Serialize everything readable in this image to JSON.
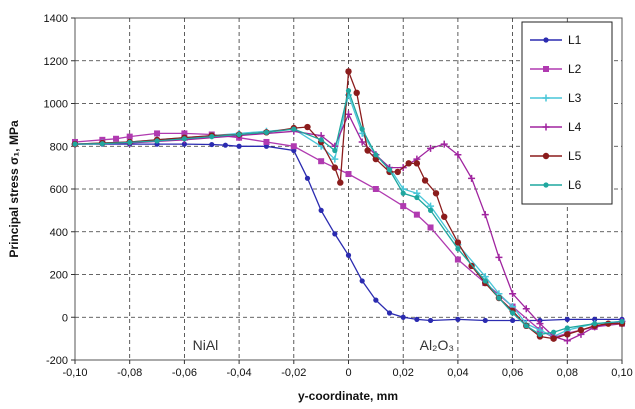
{
  "chart_data": {
    "type": "line",
    "title": "",
    "xlabel": "y-coordinate, mm",
    "ylabel": "Principal stress σ₁, MPa",
    "xlim": [
      -0.1,
      0.1
    ],
    "ylim": [
      -200,
      1400
    ],
    "grid": true,
    "legend_position": "top-right",
    "x_ticks": [
      "-0,10",
      "-0,08",
      "-0,06",
      "-0,04",
      "-0,02",
      "0",
      "0,02",
      "0,04",
      "0,06",
      "0,08",
      "0,10"
    ],
    "y_ticks": [
      "-200",
      "0",
      "200",
      "400",
      "600",
      "800",
      "1000",
      "1200",
      "1400"
    ],
    "annotations": [
      {
        "text": "NiAl",
        "x": -0.057,
        "y": -130
      },
      {
        "text": "Al₂O₃",
        "x": 0.026,
        "y": -130
      }
    ],
    "series": [
      {
        "name": "L1",
        "color": "#2b2bb0",
        "points": [
          [
            -0.1,
            810
          ],
          [
            -0.09,
            810
          ],
          [
            -0.08,
            810
          ],
          [
            -0.07,
            810
          ],
          [
            -0.06,
            810
          ],
          [
            -0.05,
            808
          ],
          [
            -0.045,
            805
          ],
          [
            -0.04,
            800
          ],
          [
            -0.03,
            800
          ],
          [
            -0.02,
            780
          ],
          [
            -0.015,
            650
          ],
          [
            -0.01,
            500
          ],
          [
            -0.005,
            390
          ],
          [
            0,
            290
          ],
          [
            0.005,
            170
          ],
          [
            0.01,
            80
          ],
          [
            0.015,
            20
          ],
          [
            0.02,
            0
          ],
          [
            0.025,
            -10
          ],
          [
            0.03,
            -15
          ],
          [
            0.04,
            -10
          ],
          [
            0.05,
            -15
          ],
          [
            0.06,
            -15
          ],
          [
            0.07,
            -15
          ],
          [
            0.08,
            -10
          ],
          [
            0.09,
            -10
          ],
          [
            0.1,
            -10
          ]
        ]
      },
      {
        "name": "L2",
        "color": "#b03ab0",
        "points": [
          [
            -0.1,
            820
          ],
          [
            -0.09,
            830
          ],
          [
            -0.085,
            835
          ],
          [
            -0.08,
            845
          ],
          [
            -0.07,
            860
          ],
          [
            -0.06,
            860
          ],
          [
            -0.05,
            855
          ],
          [
            -0.04,
            840
          ],
          [
            -0.03,
            820
          ],
          [
            -0.02,
            800
          ],
          [
            -0.01,
            730
          ],
          [
            0,
            670
          ],
          [
            0.01,
            600
          ],
          [
            0.02,
            520
          ],
          [
            0.025,
            480
          ],
          [
            0.03,
            420
          ],
          [
            0.04,
            270
          ],
          [
            0.05,
            160
          ],
          [
            0.06,
            50
          ],
          [
            0.07,
            -60
          ],
          [
            0.075,
            -95
          ],
          [
            0.08,
            -75
          ],
          [
            0.09,
            -45
          ],
          [
            0.1,
            -30
          ]
        ]
      },
      {
        "name": "L3",
        "color": "#49c6d8",
        "points": [
          [
            -0.1,
            810
          ],
          [
            -0.09,
            815
          ],
          [
            -0.08,
            820
          ],
          [
            -0.07,
            830
          ],
          [
            -0.06,
            840
          ],
          [
            -0.05,
            850
          ],
          [
            -0.04,
            860
          ],
          [
            -0.03,
            870
          ],
          [
            -0.02,
            880
          ],
          [
            -0.01,
            800
          ],
          [
            -0.005,
            740
          ],
          [
            0,
            1040
          ],
          [
            0.005,
            860
          ],
          [
            0.01,
            760
          ],
          [
            0.015,
            700
          ],
          [
            0.02,
            600
          ],
          [
            0.025,
            580
          ],
          [
            0.03,
            520
          ],
          [
            0.04,
            340
          ],
          [
            0.05,
            190
          ],
          [
            0.055,
            110
          ],
          [
            0.06,
            50
          ],
          [
            0.065,
            -30
          ],
          [
            0.07,
            -60
          ],
          [
            0.075,
            -90
          ],
          [
            0.08,
            -60
          ],
          [
            0.09,
            -30
          ],
          [
            0.1,
            -20
          ]
        ]
      },
      {
        "name": "L4",
        "color": "#a0249f",
        "points": [
          [
            -0.1,
            810
          ],
          [
            -0.08,
            815
          ],
          [
            -0.06,
            830
          ],
          [
            -0.04,
            850
          ],
          [
            -0.02,
            870
          ],
          [
            -0.01,
            850
          ],
          [
            -0.005,
            800
          ],
          [
            0,
            950
          ],
          [
            0.005,
            820
          ],
          [
            0.01,
            760
          ],
          [
            0.015,
            700
          ],
          [
            0.02,
            700
          ],
          [
            0.025,
            740
          ],
          [
            0.03,
            790
          ],
          [
            0.035,
            810
          ],
          [
            0.04,
            760
          ],
          [
            0.045,
            650
          ],
          [
            0.05,
            480
          ],
          [
            0.055,
            280
          ],
          [
            0.06,
            110
          ],
          [
            0.065,
            40
          ],
          [
            0.07,
            -30
          ],
          [
            0.075,
            -90
          ],
          [
            0.08,
            -110
          ],
          [
            0.085,
            -80
          ],
          [
            0.09,
            -45
          ],
          [
            0.1,
            -20
          ]
        ]
      },
      {
        "name": "L5",
        "color": "#8b1c1c",
        "points": [
          [
            -0.1,
            810
          ],
          [
            -0.09,
            815
          ],
          [
            -0.08,
            820
          ],
          [
            -0.07,
            830
          ],
          [
            -0.06,
            840
          ],
          [
            -0.05,
            850
          ],
          [
            -0.04,
            855
          ],
          [
            -0.03,
            865
          ],
          [
            -0.02,
            885
          ],
          [
            -0.015,
            890
          ],
          [
            -0.01,
            820
          ],
          [
            -0.005,
            700
          ],
          [
            -0.003,
            630
          ],
          [
            0,
            1150
          ],
          [
            0.003,
            1050
          ],
          [
            0.007,
            780
          ],
          [
            0.01,
            740
          ],
          [
            0.015,
            680
          ],
          [
            0.018,
            680
          ],
          [
            0.022,
            720
          ],
          [
            0.025,
            720
          ],
          [
            0.028,
            640
          ],
          [
            0.032,
            580
          ],
          [
            0.035,
            470
          ],
          [
            0.04,
            350
          ],
          [
            0.045,
            240
          ],
          [
            0.05,
            160
          ],
          [
            0.055,
            90
          ],
          [
            0.06,
            30
          ],
          [
            0.065,
            -40
          ],
          [
            0.07,
            -90
          ],
          [
            0.075,
            -100
          ],
          [
            0.08,
            -80
          ],
          [
            0.085,
            -60
          ],
          [
            0.09,
            -40
          ],
          [
            0.095,
            -30
          ],
          [
            0.1,
            -30
          ]
        ]
      },
      {
        "name": "L6",
        "color": "#1fa79f",
        "points": [
          [
            -0.1,
            810
          ],
          [
            -0.09,
            812
          ],
          [
            -0.08,
            818
          ],
          [
            -0.07,
            825
          ],
          [
            -0.06,
            835
          ],
          [
            -0.05,
            845
          ],
          [
            -0.04,
            855
          ],
          [
            -0.03,
            865
          ],
          [
            -0.02,
            880
          ],
          [
            -0.01,
            830
          ],
          [
            -0.005,
            780
          ],
          [
            0,
            1060
          ],
          [
            0.005,
            880
          ],
          [
            0.01,
            760
          ],
          [
            0.015,
            690
          ],
          [
            0.02,
            580
          ],
          [
            0.025,
            560
          ],
          [
            0.03,
            500
          ],
          [
            0.04,
            320
          ],
          [
            0.05,
            170
          ],
          [
            0.055,
            90
          ],
          [
            0.06,
            20
          ],
          [
            0.065,
            -40
          ],
          [
            0.07,
            -80
          ],
          [
            0.075,
            -70
          ],
          [
            0.08,
            -50
          ],
          [
            0.09,
            -30
          ],
          [
            0.1,
            -20
          ]
        ]
      }
    ]
  }
}
